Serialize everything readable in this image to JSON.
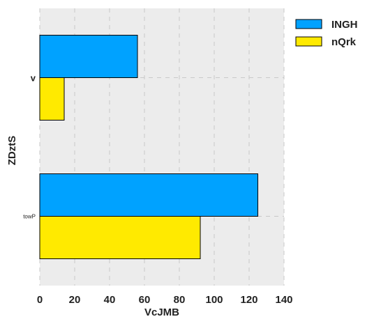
{
  "chart_data": {
    "type": "bar",
    "orientation": "horizontal",
    "categories": [
      "v",
      "towP"
    ],
    "series": [
      {
        "name": "INGH",
        "values": [
          56,
          125
        ],
        "color": "#00a2ff"
      },
      {
        "name": "nQrk",
        "values": [
          14,
          92
        ],
        "color": "#ffea00"
      }
    ],
    "xlabel": "VcJMB",
    "ylabel": "ZDztS",
    "xlim": [
      0,
      140
    ],
    "xticks": [
      0,
      20,
      40,
      60,
      80,
      100,
      120,
      140
    ],
    "grid": true,
    "legend_position": "upper right, outside",
    "background": "#ececec"
  }
}
